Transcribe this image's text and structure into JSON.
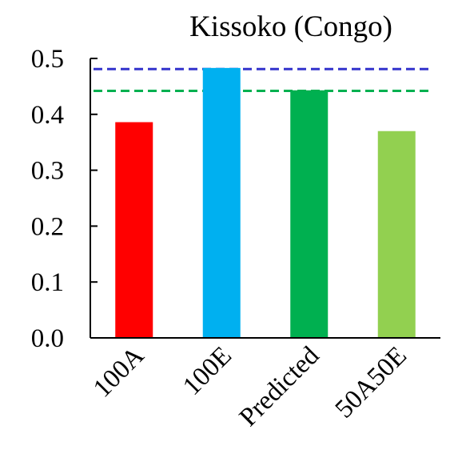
{
  "chart_data": {
    "type": "bar",
    "title": "Kissoko (Congo)",
    "xlabel": "",
    "ylabel": "",
    "categories": [
      "100A",
      "100E",
      "Predicted",
      "50A50E"
    ],
    "values": [
      0.386,
      0.483,
      0.443,
      0.37
    ],
    "bar_colors": [
      "#ff0000",
      "#00b0f0",
      "#00b050",
      "#92d050"
    ],
    "ylim": [
      0.0,
      0.5
    ],
    "yticks": [
      "0.0",
      "0.1",
      "0.2",
      "0.3",
      "0.4",
      "0.5"
    ],
    "reference_lines": [
      {
        "value": 0.481,
        "color": "#3333cc",
        "style": "dashed"
      },
      {
        "value": 0.442,
        "color": "#00b050",
        "style": "dashed"
      }
    ],
    "grid": false,
    "legend": "none"
  }
}
